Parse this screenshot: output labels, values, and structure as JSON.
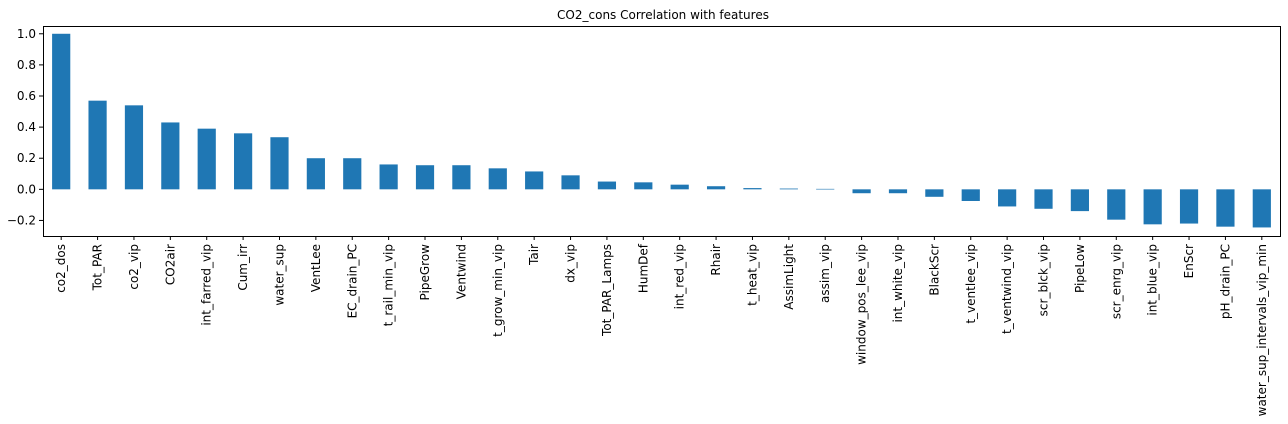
{
  "chart_data": {
    "type": "bar",
    "title": "CO2_cons Correlation with features",
    "xlabel": "",
    "ylabel": "",
    "ylim": [
      -0.3,
      1.05
    ],
    "yticks": [
      -0.2,
      0.0,
      0.2,
      0.4,
      0.6,
      0.8,
      1.0
    ],
    "ytick_labels": [
      "−0.2",
      "0.0",
      "0.2",
      "0.4",
      "0.6",
      "0.8",
      "1.0"
    ],
    "bar_color": "#1f77b4",
    "grid": false,
    "categories": [
      "co2_dos",
      "Tot_PAR",
      "co2_vip",
      "CO2air",
      "int_farred_vip",
      "Cum_irr",
      "water_sup",
      "VentLee",
      "EC_drain_PC",
      "t_rail_min_vip",
      "PipeGrow",
      "Ventwind",
      "t_grow_min_vip",
      "Tair",
      "dx_vip",
      "Tot_PAR_Lamps",
      "HumDef",
      "int_red_vip",
      "Rhair",
      "t_heat_vip",
      "AssimLight",
      "assim_vip",
      "window_pos_lee_vip",
      "int_white_vip",
      "BlackScr",
      "t_ventlee_vip",
      "t_ventwind_vip",
      "scr_blck_vip",
      "PipeLow",
      "scr_enrg_vip",
      "int_blue_vip",
      "EnScr",
      "pH_drain_PC",
      "water_sup_intervals_vip_min"
    ],
    "values": [
      1.0,
      0.57,
      0.54,
      0.43,
      0.39,
      0.36,
      0.335,
      0.2,
      0.2,
      0.16,
      0.155,
      0.155,
      0.135,
      0.115,
      0.09,
      0.05,
      0.045,
      0.03,
      0.02,
      0.008,
      0.005,
      0.003,
      -0.025,
      -0.025,
      -0.048,
      -0.075,
      -0.11,
      -0.125,
      -0.14,
      -0.195,
      -0.225,
      -0.22,
      -0.24,
      -0.245
    ]
  }
}
